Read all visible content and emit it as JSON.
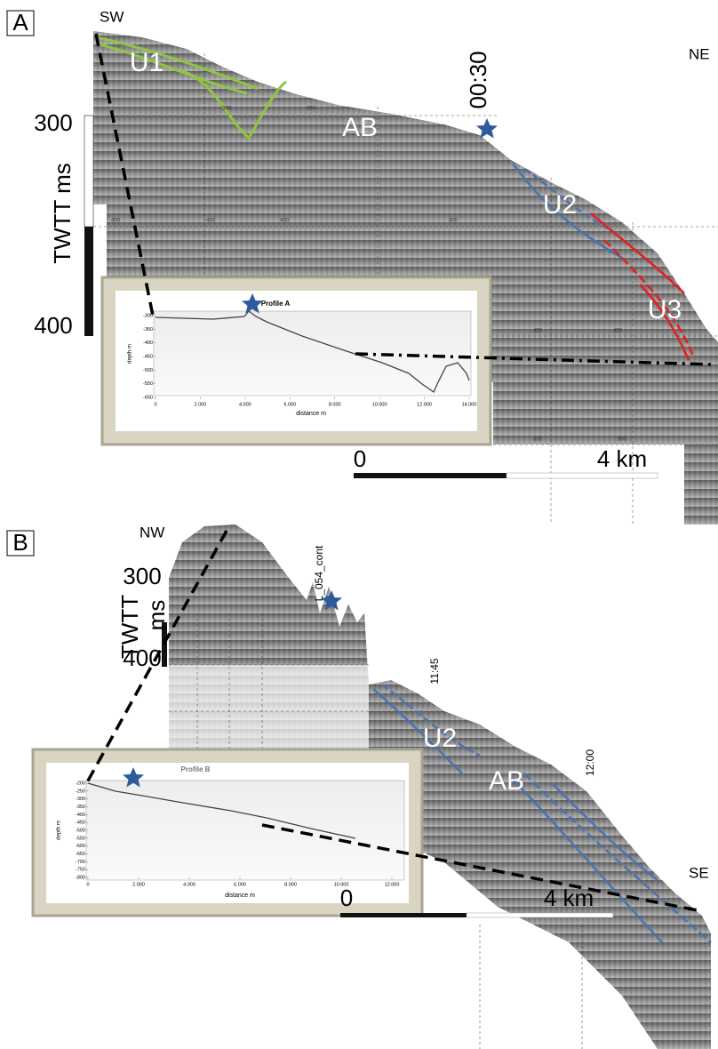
{
  "panel_a": {
    "label": "A",
    "left_direction": "SW",
    "right_direction": "NE",
    "units": [
      "U1",
      "U2",
      "U3"
    ],
    "feature": "AB",
    "time_mark": "00:30",
    "scale": {
      "top": "300",
      "bottom": "400",
      "title": "TWTT ms"
    },
    "grid_labels": [
      "350",
      "350",
      "400",
      "400",
      "400",
      "400",
      "450",
      "450",
      "500",
      "500"
    ],
    "scale_bar": {
      "start": "0",
      "end": "4 km"
    },
    "inset": {
      "title": "Profile A",
      "y_label": "depth m",
      "x_label": "distance m",
      "yticks": [
        "-300",
        "-350",
        "-400",
        "-450",
        "-500",
        "-550",
        "-600"
      ],
      "xticks": [
        "0",
        "2.000",
        "4.000",
        "6.000",
        "8.000",
        "10.000",
        "12.000",
        "14.000"
      ]
    }
  },
  "panel_b": {
    "label": "B",
    "left_direction": "NW",
    "right_direction": "SE",
    "units": [
      "U2"
    ],
    "feature": "AB",
    "line_name": "L_054_cont",
    "time_marks": [
      "11:45",
      "12:00"
    ],
    "scale": {
      "top": "300",
      "bottom": "400",
      "title": "TWTT",
      "unit": "ms"
    },
    "scale_bar": {
      "start": "0",
      "end": "4 km"
    },
    "inset": {
      "title": "Profile B",
      "y_label": "depth m",
      "x_label": "distance m",
      "yticks": [
        "-200",
        "-250",
        "-300",
        "-350",
        "-400",
        "-450",
        "-500",
        "-550",
        "-600",
        "-650",
        "-700",
        "-750",
        "-800"
      ],
      "xticks": [
        "0",
        "2.000",
        "4.000",
        "6.000",
        "8.000",
        "10.000",
        "12.000"
      ]
    }
  }
}
